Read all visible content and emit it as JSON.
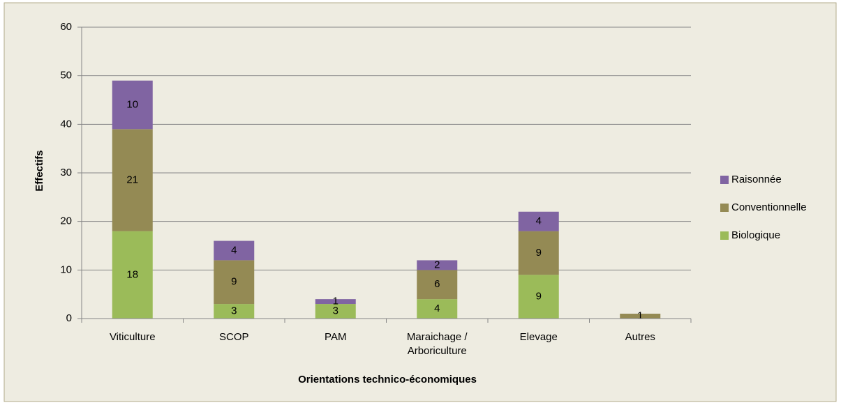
{
  "chart_data": {
    "type": "bar",
    "stacked": true,
    "y_label": "Effectifs",
    "x_label": "Orientations technico-économiques",
    "categories": [
      "Viticulture",
      "SCOP",
      "PAM",
      "Maraichage / Arboriculture",
      "Elevage",
      "Autres"
    ],
    "series": [
      {
        "name": "Biologique",
        "color": "#9bbb59",
        "values": [
          18,
          3,
          3,
          4,
          9,
          null
        ]
      },
      {
        "name": "Conventionnelle",
        "color": "#948a54",
        "values": [
          21,
          9,
          null,
          6,
          9,
          1
        ]
      },
      {
        "name": "Raisonnée",
        "color": "#8064a2",
        "values": [
          10,
          4,
          1,
          2,
          4,
          null
        ]
      }
    ],
    "ylim": [
      0,
      60
    ],
    "yticks": [
      0,
      10,
      20,
      30,
      40,
      50,
      60
    ],
    "grid": true,
    "legend": "right"
  }
}
